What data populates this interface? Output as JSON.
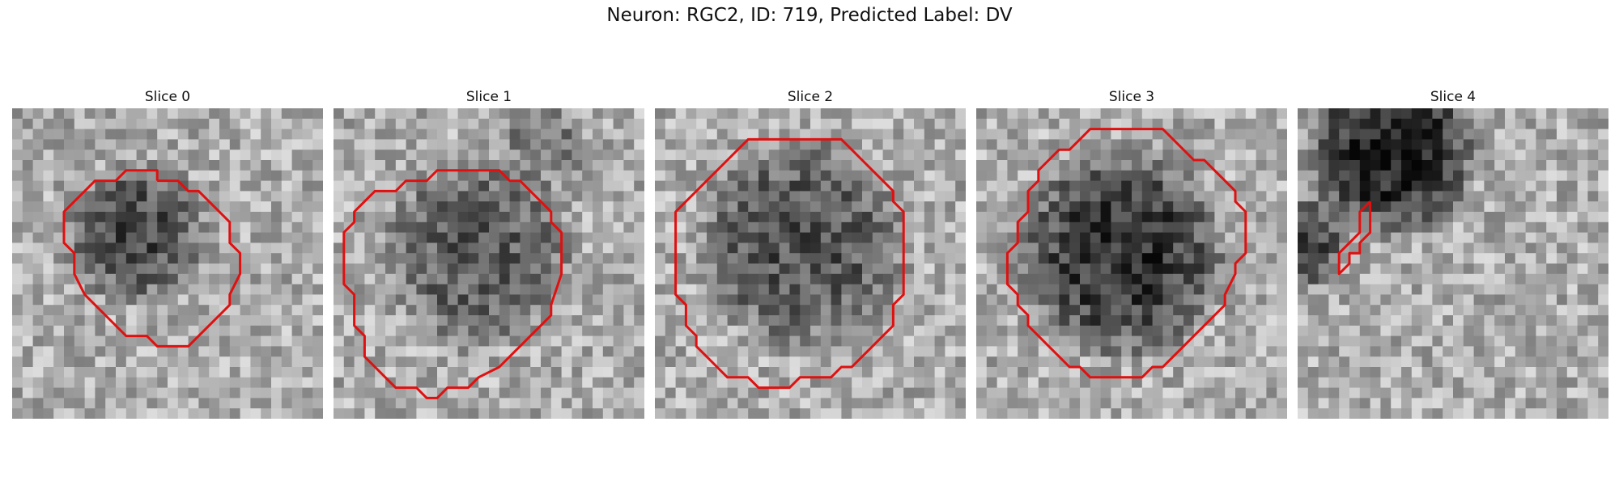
{
  "figure": {
    "title": "Neuron: RGC2, ID: 719, Predicted Label: DV"
  },
  "colors": {
    "contour": "#e01010",
    "background": "#ffffff"
  },
  "panels": [
    {
      "title": "Slice 0",
      "contour": [
        [
          14,
          7
        ],
        [
          16,
          7
        ],
        [
          17,
          8
        ],
        [
          18,
          8
        ],
        [
          19,
          9
        ],
        [
          20,
          10
        ],
        [
          21,
          11
        ],
        [
          21,
          13
        ],
        [
          22,
          14
        ],
        [
          22,
          16
        ],
        [
          21,
          18
        ],
        [
          21,
          19
        ],
        [
          20,
          20
        ],
        [
          19,
          21
        ],
        [
          18,
          22
        ],
        [
          17,
          23
        ],
        [
          14,
          23
        ],
        [
          13,
          22
        ],
        [
          11,
          22
        ],
        [
          10,
          21
        ],
        [
          9,
          20
        ],
        [
          8,
          19
        ],
        [
          7,
          18
        ],
        [
          6,
          16
        ],
        [
          6,
          14
        ],
        [
          5,
          13
        ],
        [
          5,
          10
        ],
        [
          6,
          9
        ],
        [
          7,
          8
        ],
        [
          8,
          7
        ],
        [
          10,
          7
        ],
        [
          11,
          6
        ],
        [
          14,
          6
        ],
        [
          14,
          7
        ]
      ]
    },
    {
      "title": "Slice 1",
      "contour": [
        [
          14,
          6
        ],
        [
          16,
          6
        ],
        [
          17,
          7
        ],
        [
          18,
          7
        ],
        [
          19,
          8
        ],
        [
          20,
          9
        ],
        [
          21,
          10
        ],
        [
          21,
          11
        ],
        [
          22,
          12
        ],
        [
          22,
          16
        ],
        [
          21,
          19
        ],
        [
          21,
          20
        ],
        [
          20,
          21
        ],
        [
          19,
          22
        ],
        [
          18,
          23
        ],
        [
          17,
          24
        ],
        [
          16,
          25
        ],
        [
          14,
          26
        ],
        [
          13,
          27
        ],
        [
          11,
          27
        ],
        [
          10,
          28
        ],
        [
          9,
          28
        ],
        [
          8,
          27
        ],
        [
          6,
          27
        ],
        [
          5,
          26
        ],
        [
          4,
          25
        ],
        [
          3,
          24
        ],
        [
          3,
          22
        ],
        [
          2,
          21
        ],
        [
          2,
          18
        ],
        [
          1,
          17
        ],
        [
          1,
          12
        ],
        [
          2,
          11
        ],
        [
          2,
          10
        ],
        [
          3,
          9
        ],
        [
          4,
          8
        ],
        [
          6,
          8
        ],
        [
          7,
          7
        ],
        [
          9,
          7
        ],
        [
          10,
          6
        ],
        [
          14,
          6
        ]
      ]
    },
    {
      "title": "Slice 2",
      "contour": [
        [
          12,
          3
        ],
        [
          18,
          3
        ],
        [
          19,
          4
        ],
        [
          20,
          5
        ],
        [
          21,
          6
        ],
        [
          22,
          7
        ],
        [
          23,
          8
        ],
        [
          23,
          9
        ],
        [
          24,
          10
        ],
        [
          24,
          18
        ],
        [
          23,
          19
        ],
        [
          23,
          21
        ],
        [
          22,
          22
        ],
        [
          21,
          23
        ],
        [
          20,
          24
        ],
        [
          19,
          25
        ],
        [
          18,
          25
        ],
        [
          17,
          26
        ],
        [
          14,
          26
        ],
        [
          13,
          27
        ],
        [
          10,
          27
        ],
        [
          9,
          26
        ],
        [
          7,
          26
        ],
        [
          6,
          25
        ],
        [
          5,
          24
        ],
        [
          4,
          23
        ],
        [
          4,
          22
        ],
        [
          3,
          21
        ],
        [
          3,
          19
        ],
        [
          2,
          18
        ],
        [
          2,
          10
        ],
        [
          3,
          9
        ],
        [
          4,
          8
        ],
        [
          5,
          7
        ],
        [
          6,
          6
        ],
        [
          7,
          5
        ],
        [
          8,
          4
        ],
        [
          9,
          3
        ],
        [
          12,
          3
        ]
      ]
    },
    {
      "title": "Slice 3",
      "contour": [
        [
          14,
          2
        ],
        [
          18,
          2
        ],
        [
          19,
          3
        ],
        [
          20,
          4
        ],
        [
          21,
          5
        ],
        [
          22,
          5
        ],
        [
          23,
          6
        ],
        [
          24,
          7
        ],
        [
          25,
          8
        ],
        [
          25,
          9
        ],
        [
          26,
          10
        ],
        [
          26,
          14
        ],
        [
          25,
          15
        ],
        [
          25,
          16
        ],
        [
          24,
          18
        ],
        [
          24,
          19
        ],
        [
          23,
          20
        ],
        [
          22,
          21
        ],
        [
          21,
          22
        ],
        [
          20,
          23
        ],
        [
          19,
          24
        ],
        [
          18,
          25
        ],
        [
          17,
          25
        ],
        [
          16,
          26
        ],
        [
          11,
          26
        ],
        [
          10,
          25
        ],
        [
          9,
          25
        ],
        [
          8,
          24
        ],
        [
          7,
          23
        ],
        [
          6,
          22
        ],
        [
          5,
          21
        ],
        [
          5,
          20
        ],
        [
          4,
          19
        ],
        [
          4,
          18
        ],
        [
          3,
          17
        ],
        [
          3,
          14
        ],
        [
          4,
          13
        ],
        [
          4,
          11
        ],
        [
          5,
          10
        ],
        [
          5,
          8
        ],
        [
          6,
          7
        ],
        [
          6,
          6
        ],
        [
          7,
          5
        ],
        [
          8,
          4
        ],
        [
          9,
          4
        ],
        [
          10,
          3
        ],
        [
          11,
          2
        ],
        [
          14,
          2
        ]
      ]
    },
    {
      "title": "Slice 4",
      "contour": [
        [
          7,
          9
        ],
        [
          7,
          12
        ],
        [
          6,
          13
        ],
        [
          6,
          14
        ],
        [
          5,
          14
        ],
        [
          5,
          15
        ],
        [
          4,
          16
        ],
        [
          4,
          15
        ],
        [
          4,
          14
        ],
        [
          5,
          13
        ],
        [
          6,
          12
        ],
        [
          6,
          10
        ],
        [
          7,
          9
        ]
      ]
    }
  ]
}
